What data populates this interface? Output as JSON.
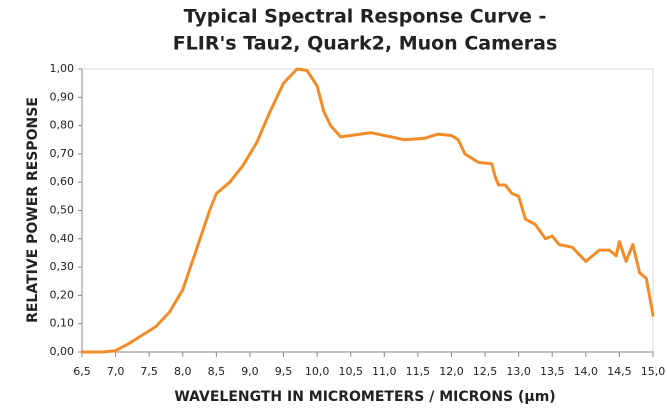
{
  "chart_data": {
    "type": "line",
    "title": [
      "Typical Spectral Response Curve -",
      "FLIR's Tau2, Quark2, Muon Cameras"
    ],
    "x_label": "WAVELENGTH IN MICROMETERS / MICRONS (µm)",
    "y_label": "RELATIVE POWER RESPONSE",
    "color": "#f28c28",
    "grid": false,
    "x": [
      6.5,
      6.8,
      7.0,
      7.2,
      7.4,
      7.6,
      7.8,
      8.0,
      8.2,
      8.4,
      8.5,
      8.7,
      8.9,
      9.1,
      9.3,
      9.5,
      9.7,
      9.85,
      10.0,
      10.1,
      10.2,
      10.35,
      10.5,
      10.8,
      11.0,
      11.1,
      11.3,
      11.6,
      11.8,
      12.0,
      12.1,
      12.2,
      12.4,
      12.6,
      12.65,
      12.7,
      12.8,
      12.9,
      13.0,
      13.1,
      13.25,
      13.4,
      13.5,
      13.6,
      13.8,
      14.0,
      14.2,
      14.35,
      14.45,
      14.5,
      14.6,
      14.7,
      14.8,
      14.9,
      15.0
    ],
    "values": [
      0,
      0,
      0.005,
      0.03,
      0.06,
      0.09,
      0.14,
      0.22,
      0.36,
      0.5,
      0.56,
      0.6,
      0.66,
      0.74,
      0.85,
      0.95,
      1.0,
      0.995,
      0.94,
      0.85,
      0.8,
      0.76,
      0.765,
      0.775,
      0.765,
      0.76,
      0.75,
      0.755,
      0.77,
      0.765,
      0.75,
      0.7,
      0.67,
      0.665,
      0.62,
      0.59,
      0.59,
      0.56,
      0.55,
      0.47,
      0.45,
      0.4,
      0.41,
      0.38,
      0.37,
      0.32,
      0.36,
      0.36,
      0.34,
      0.39,
      0.32,
      0.38,
      0.28,
      0.26,
      0.13
    ],
    "xlim": [
      6.5,
      15.0
    ],
    "ylim": [
      0,
      1.0
    ],
    "xticks": [
      {
        "value": 6.5,
        "label": "6,5"
      },
      {
        "value": 7.0,
        "label": "7,0"
      },
      {
        "value": 7.5,
        "label": "7,5"
      },
      {
        "value": 8.0,
        "label": "8,0"
      },
      {
        "value": 8.5,
        "label": "8,5"
      },
      {
        "value": 9.0,
        "label": "9,0"
      },
      {
        "value": 9.5,
        "label": "9,5"
      },
      {
        "value": 10.0,
        "label": "10,0"
      },
      {
        "value": 10.5,
        "label": "10,5"
      },
      {
        "value": 11.0,
        "label": "11,0"
      },
      {
        "value": 11.5,
        "label": "11,5"
      },
      {
        "value": 12.0,
        "label": "12,0"
      },
      {
        "value": 12.5,
        "label": "12,5"
      },
      {
        "value": 13.0,
        "label": "13,0"
      },
      {
        "value": 13.5,
        "label": "13,5"
      },
      {
        "value": 14.0,
        "label": "14,0"
      },
      {
        "value": 14.5,
        "label": "14,5"
      },
      {
        "value": 15.0,
        "label": "15,0"
      }
    ],
    "yticks": [
      {
        "value": 0,
        "label": "0,00"
      },
      {
        "value": 0.1,
        "label": "0,10"
      },
      {
        "value": 0.2,
        "label": "0,20"
      },
      {
        "value": 0.3,
        "label": "0,30"
      },
      {
        "value": 0.4,
        "label": "0,40"
      },
      {
        "value": 0.5,
        "label": "0,50"
      },
      {
        "value": 0.6,
        "label": "0,60"
      },
      {
        "value": 0.7,
        "label": "0,70"
      },
      {
        "value": 0.8,
        "label": "0,80"
      },
      {
        "value": 0.9,
        "label": "0,90"
      },
      {
        "value": 1.0,
        "label": "1,00"
      }
    ]
  }
}
